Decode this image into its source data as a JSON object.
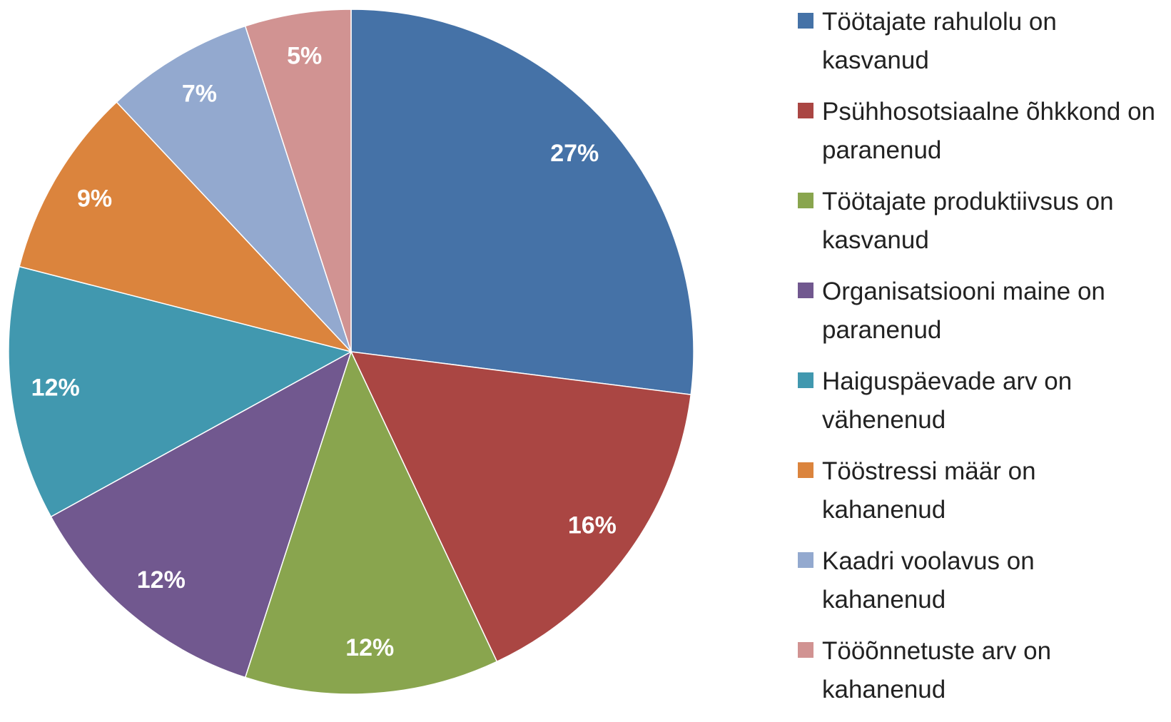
{
  "chart_data": {
    "type": "pie",
    "categories": [
      "Töötajate rahulolu on kasvanud",
      "Psühhosotsiaalne õhkkond on paranenud",
      "Töötajate produktiivsus on kasvanud",
      "Organisatsiooni maine on paranenud",
      "Haiguspäevade arv on vähenenud",
      "Tööstressi määr on kahanenud",
      "Kaadri voolavus on kahanenud",
      "Tööõnnetuste arv on kahanenud"
    ],
    "values": [
      27,
      16,
      12,
      12,
      12,
      9,
      7,
      5
    ],
    "value_labels": [
      "27%",
      "16%",
      "12%",
      "12%",
      "12%",
      "9%",
      "7%",
      "5%"
    ],
    "colors": [
      "#4572a7",
      "#aa4643",
      "#89a54e",
      "#71588f",
      "#4198af",
      "#db843d",
      "#93a9cf",
      "#d19392"
    ],
    "legend": "right"
  }
}
